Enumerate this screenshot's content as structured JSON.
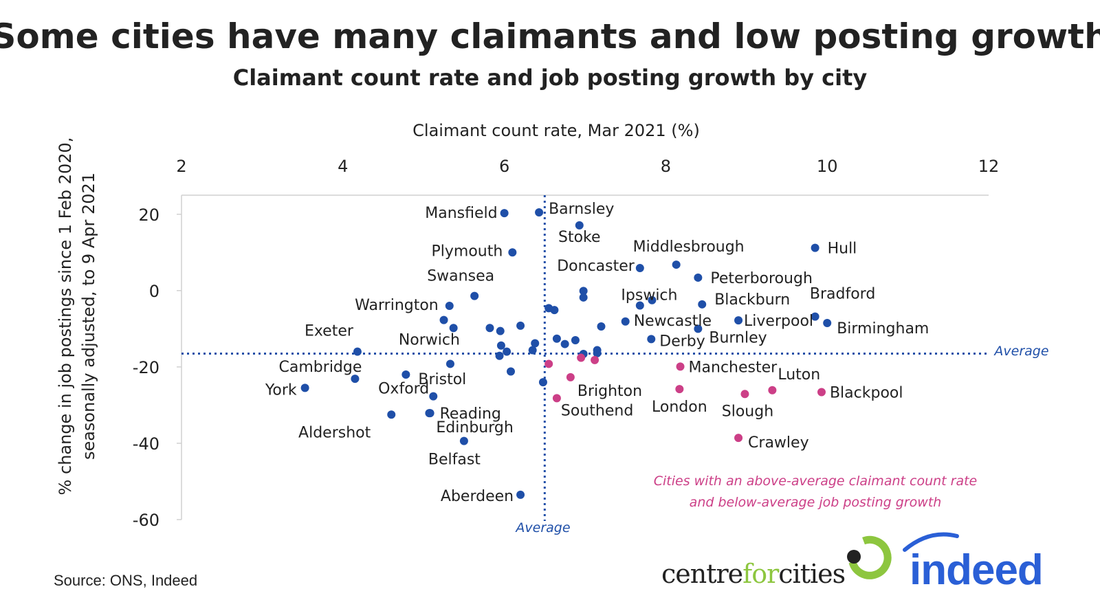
{
  "chart_data": {
    "type": "scatter",
    "title": "Some cities have many claimants and low posting growth",
    "subtitle": "Claimant count rate and job posting growth by city",
    "xlabel": "Claimant count rate, Mar 2021 (%)",
    "ylabel_line1": "% change in job postings since 1 Feb 2020,",
    "ylabel_line2": "seasonally adjusted, to 9 Apr 2021",
    "xlim": [
      2,
      12
    ],
    "ylim": [
      -60,
      25
    ],
    "xticks": [
      "2",
      "4",
      "6",
      "8",
      "10",
      "12"
    ],
    "xtick_values": [
      2,
      4,
      6,
      8,
      10,
      12
    ],
    "yticks": [
      "20",
      "0",
      "-20",
      "-40",
      "-60"
    ],
    "ytick_values": [
      20,
      0,
      -20,
      -40,
      -60
    ],
    "average_x": 6.5,
    "average_y": -16.5,
    "average_label": "Average",
    "note_line1": "Cities with an above-average claimant count rate",
    "note_line2": "and below-average job posting growth",
    "colors": {
      "default": "#1f4fa8",
      "highlight": "#cc3f87",
      "average_line": "#1f4fa8"
    },
    "points": [
      {
        "name": "Mansfield",
        "x": 6.0,
        "y": 20.3,
        "highlight": false
      },
      {
        "name": "Barnsley",
        "x": 6.43,
        "y": 20.5,
        "highlight": false
      },
      {
        "name": "Stoke",
        "x": 6.93,
        "y": 17.1,
        "highlight": false
      },
      {
        "name": "Plymouth",
        "x": 6.1,
        "y": 10.0,
        "highlight": false
      },
      {
        "name": "Hull",
        "x": 9.85,
        "y": 11.2,
        "highlight": false
      },
      {
        "name": "Middlesbrough",
        "x": 8.13,
        "y": 6.8,
        "highlight": false
      },
      {
        "name": "Doncaster",
        "x": 7.68,
        "y": 5.9,
        "highlight": false
      },
      {
        "name": "Peterborough",
        "x": 8.4,
        "y": 3.4,
        "highlight": false
      },
      {
        "name": "Swansea",
        "x": 5.63,
        "y": -1.4,
        "highlight": false
      },
      {
        "name": "Ipswich",
        "x": 7.83,
        "y": -2.5,
        "highlight": false
      },
      {
        "name": "Blackburn",
        "x": 8.45,
        "y": -3.6,
        "highlight": false
      },
      {
        "name": "Bradford",
        "x": 9.85,
        "y": -6.8,
        "highlight": false
      },
      {
        "name": "Warrington",
        "x": 5.32,
        "y": -4.0,
        "highlight": false
      },
      {
        "name": "Newcastle",
        "x": 7.5,
        "y": -8.1,
        "highlight": false
      },
      {
        "name": "Liverpool",
        "x": 8.9,
        "y": -7.8,
        "highlight": false
      },
      {
        "name": "Birmingham",
        "x": 10.0,
        "y": -8.5,
        "highlight": false
      },
      {
        "name": "Burnley",
        "x": 8.4,
        "y": -10.0,
        "highlight": false
      },
      {
        "name": "Exeter",
        "x": 4.18,
        "y": -16.0,
        "highlight": false
      },
      {
        "name": "Derby",
        "x": 7.82,
        "y": -12.7,
        "highlight": false
      },
      {
        "name": "Norwich",
        "x": 5.33,
        "y": -19.2,
        "highlight": false
      },
      {
        "name": "Cambridge",
        "x": 4.15,
        "y": -23.1,
        "highlight": false
      },
      {
        "name": "Manchester",
        "x": 8.18,
        "y": -19.9,
        "highlight": true
      },
      {
        "name": "Bristol",
        "x": 4.78,
        "y": -22.0,
        "highlight": false
      },
      {
        "name": "York",
        "x": 3.53,
        "y": -25.5,
        "highlight": false
      },
      {
        "name": "Oxford",
        "x": 5.12,
        "y": -27.7,
        "highlight": false
      },
      {
        "name": "Brighton",
        "x": 6.82,
        "y": -22.7,
        "highlight": true
      },
      {
        "name": "Reading",
        "x": 5.08,
        "y": -32.1,
        "highlight": false
      },
      {
        "name": "Luton",
        "x": 9.32,
        "y": -26.1,
        "highlight": true
      },
      {
        "name": "Blackpool",
        "x": 9.93,
        "y": -26.6,
        "highlight": true
      },
      {
        "name": "Aldershot",
        "x": 4.6,
        "y": -32.5,
        "highlight": false
      },
      {
        "name": "Edinburgh",
        "x": 5.07,
        "y": -32.1,
        "highlight": false
      },
      {
        "name": "Southend",
        "x": 6.65,
        "y": -28.2,
        "highlight": true
      },
      {
        "name": "London",
        "x": 8.17,
        "y": -25.8,
        "highlight": true
      },
      {
        "name": "Slough",
        "x": 8.98,
        "y": -27.1,
        "highlight": true
      },
      {
        "name": "Crawley",
        "x": 8.9,
        "y": -38.6,
        "highlight": true
      },
      {
        "name": "Belfast",
        "x": 5.5,
        "y": -39.4,
        "highlight": false
      },
      {
        "name": "Aberdeen",
        "x": 6.2,
        "y": -53.5,
        "highlight": false
      },
      {
        "name": "",
        "x": 5.95,
        "y": -10.6,
        "highlight": false
      },
      {
        "name": "",
        "x": 5.82,
        "y": -9.8,
        "highlight": false
      },
      {
        "name": "",
        "x": 6.2,
        "y": -9.2,
        "highlight": false
      },
      {
        "name": "",
        "x": 5.37,
        "y": -9.8,
        "highlight": false
      },
      {
        "name": "",
        "x": 5.25,
        "y": -7.7,
        "highlight": false
      },
      {
        "name": "",
        "x": 6.55,
        "y": -4.6,
        "highlight": false
      },
      {
        "name": "",
        "x": 6.62,
        "y": -5.1,
        "highlight": false
      },
      {
        "name": "",
        "x": 6.98,
        "y": -0.1,
        "highlight": false
      },
      {
        "name": "",
        "x": 6.98,
        "y": -1.8,
        "highlight": false
      },
      {
        "name": "",
        "x": 7.2,
        "y": -9.4,
        "highlight": false
      },
      {
        "name": "",
        "x": 7.68,
        "y": -3.9,
        "highlight": false
      },
      {
        "name": "",
        "x": 6.88,
        "y": -13.0,
        "highlight": false
      },
      {
        "name": "",
        "x": 6.75,
        "y": -14.0,
        "highlight": false
      },
      {
        "name": "",
        "x": 6.65,
        "y": -12.6,
        "highlight": false
      },
      {
        "name": "",
        "x": 6.38,
        "y": -13.8,
        "highlight": false
      },
      {
        "name": "",
        "x": 6.35,
        "y": -15.6,
        "highlight": false
      },
      {
        "name": "",
        "x": 5.96,
        "y": -14.4,
        "highlight": false
      },
      {
        "name": "",
        "x": 6.03,
        "y": -16.0,
        "highlight": false
      },
      {
        "name": "",
        "x": 5.94,
        "y": -17.1,
        "highlight": false
      },
      {
        "name": "",
        "x": 6.08,
        "y": -21.2,
        "highlight": false
      },
      {
        "name": "",
        "x": 6.48,
        "y": -24.0,
        "highlight": false
      },
      {
        "name": "",
        "x": 6.98,
        "y": -16.6,
        "highlight": false
      },
      {
        "name": "",
        "x": 7.15,
        "y": -15.6,
        "highlight": false
      },
      {
        "name": "",
        "x": 7.15,
        "y": -16.4,
        "highlight": false
      },
      {
        "name": "",
        "x": 6.55,
        "y": -19.2,
        "highlight": true
      },
      {
        "name": "",
        "x": 6.95,
        "y": -17.6,
        "highlight": true
      },
      {
        "name": "",
        "x": 7.12,
        "y": -18.2,
        "highlight": true
      }
    ]
  },
  "source": "Source: ONS, Indeed",
  "logos": {
    "centre_pre": "centre",
    "centre_for": "for",
    "centre_post": "cities",
    "indeed": "indeed"
  }
}
